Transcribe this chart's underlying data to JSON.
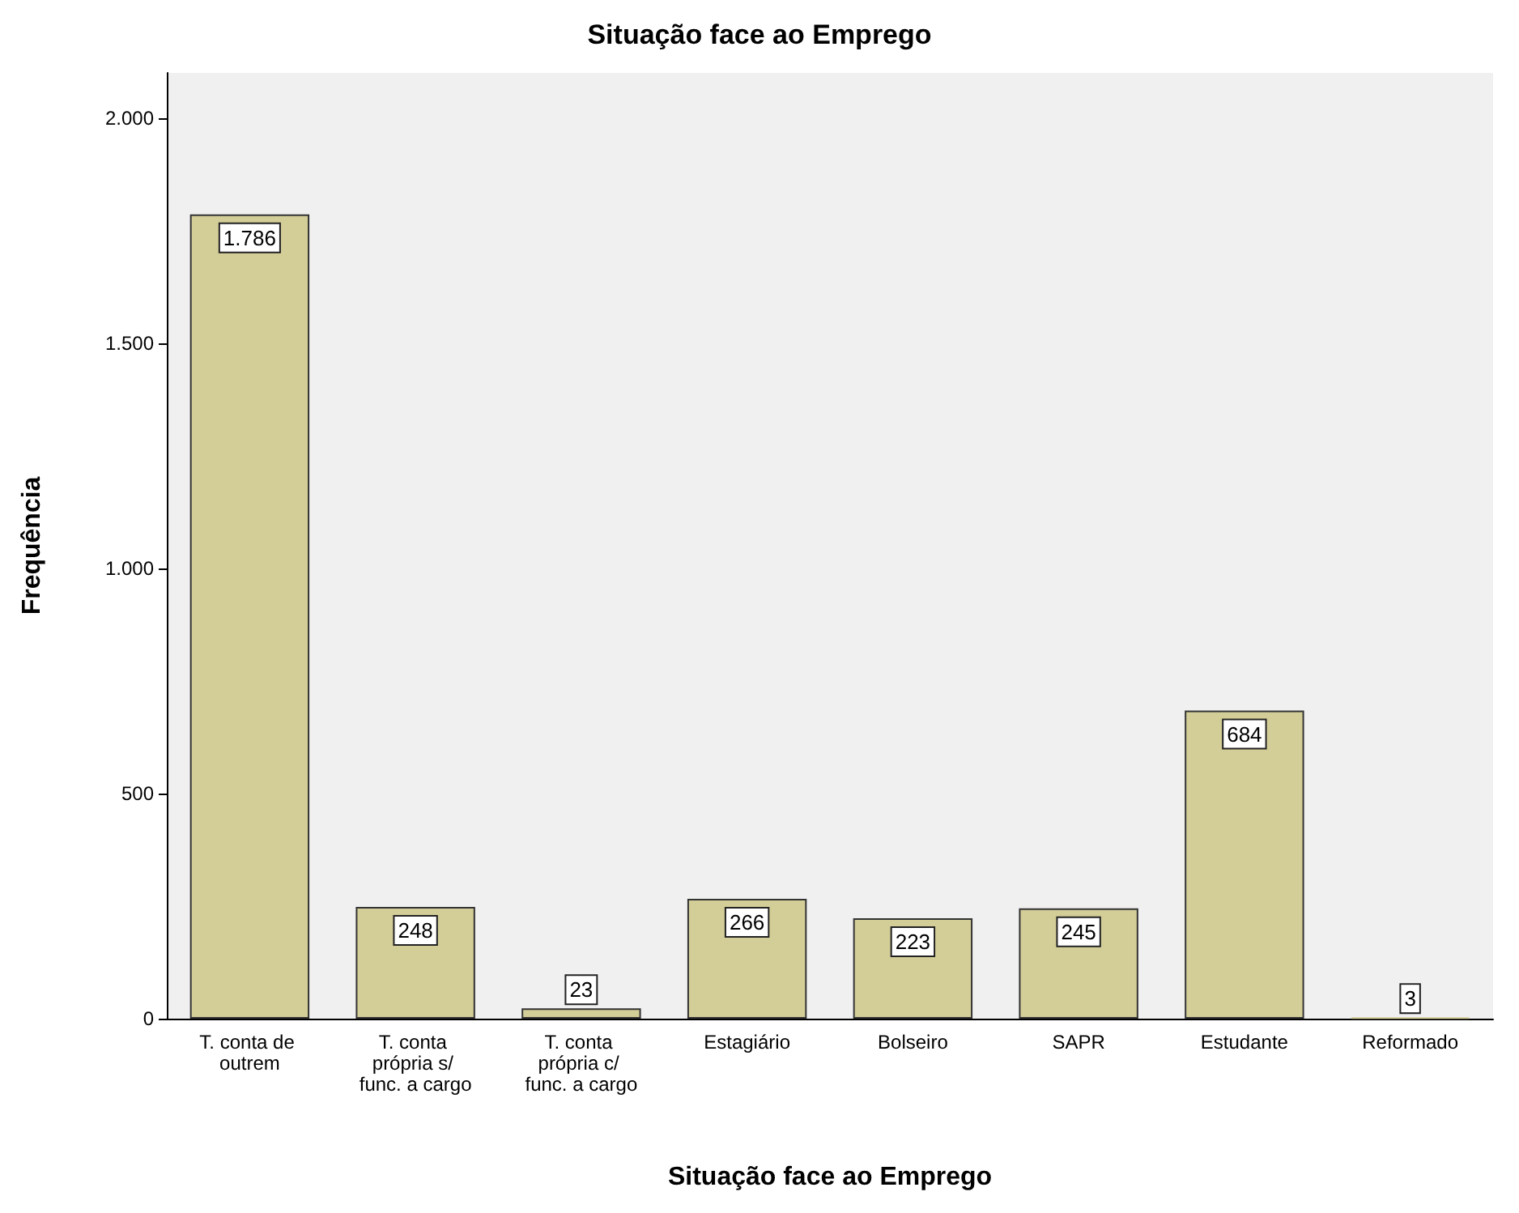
{
  "chart_data": {
    "type": "bar",
    "title": "Situação face ao Emprego",
    "xlabel": "Situação face ao Emprego",
    "ylabel": "Frequência",
    "categories": [
      "T. conta de outrem",
      "T. conta própria s/ func. a cargo",
      "T. conta própria c/ func. a cargo",
      "Estagiário",
      "Bolseiro",
      "SAPR",
      "Estudante",
      "Reformado"
    ],
    "values": [
      1786,
      248,
      23,
      266,
      223,
      245,
      684,
      3
    ],
    "value_labels": [
      "1.786",
      "248",
      "23",
      "266",
      "223",
      "245",
      "684",
      "3"
    ],
    "color": "#d3cd98",
    "ylim": [
      0,
      2100
    ],
    "yticks": [
      0,
      {
        "value": 500,
        "label": "500"
      },
      {
        "value": 1000,
        "label": "1.000"
      },
      {
        "value": 1500,
        "label": "1.500"
      },
      {
        "value": 2000,
        "label": "2.000"
      }
    ],
    "grid": false
  }
}
